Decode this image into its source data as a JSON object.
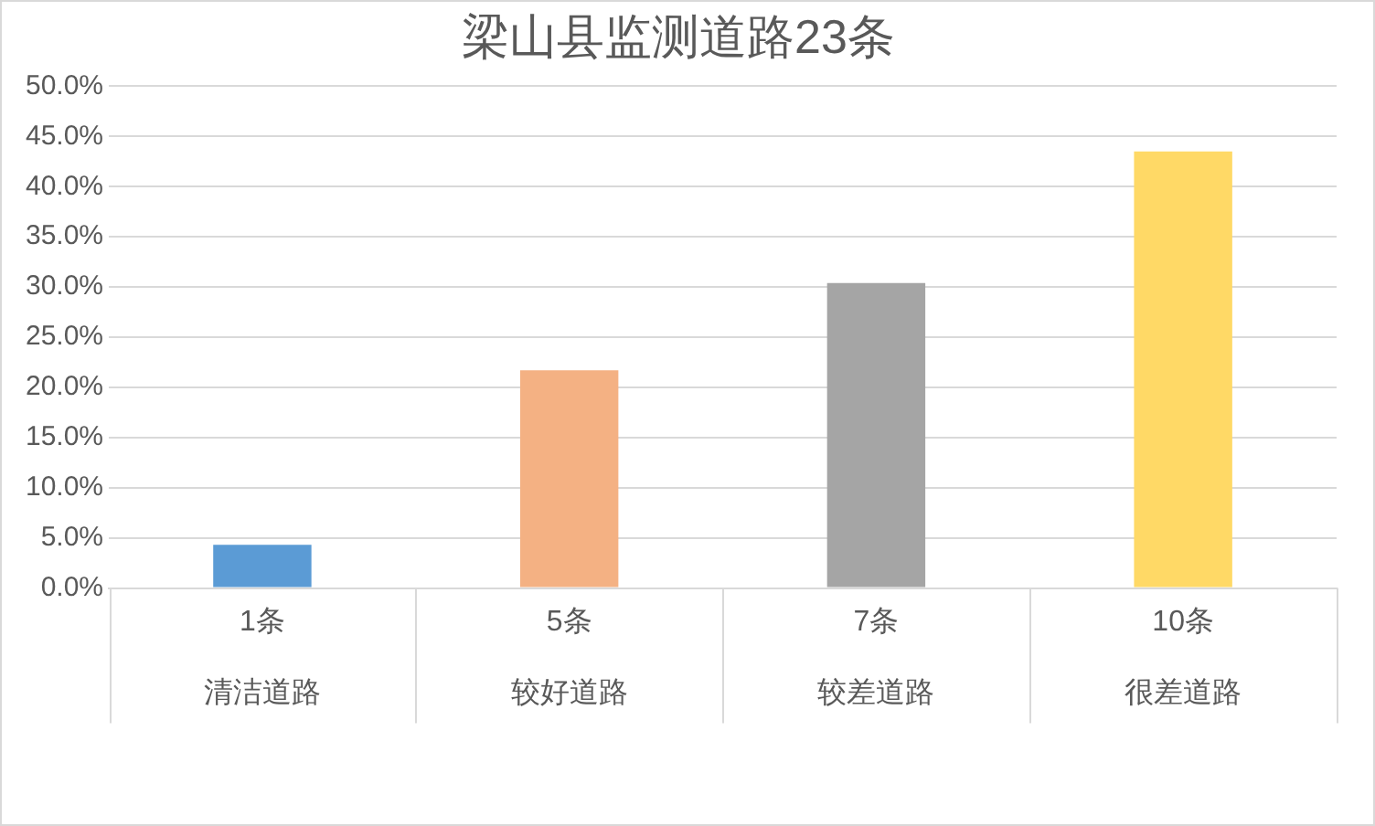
{
  "chart_data": {
    "type": "bar",
    "title": "梁山县监测道路23条",
    "categories": [
      "清洁道路",
      "较好道路",
      "较差道路",
      "很差道路"
    ],
    "annotations": [
      "1条",
      "5条",
      "7条",
      "10条"
    ],
    "values": [
      4.3,
      21.7,
      30.4,
      43.5
    ],
    "colors": [
      "#5b9bd5",
      "#f4b183",
      "#a5a5a5",
      "#ffd966"
    ],
    "ylim": [
      0,
      50
    ],
    "yticks": [
      {
        "value": 0,
        "label": "0.0%"
      },
      {
        "value": 5,
        "label": "5.0%"
      },
      {
        "value": 10,
        "label": "10.0%"
      },
      {
        "value": 15,
        "label": "15.0%"
      },
      {
        "value": 20,
        "label": "20.0%"
      },
      {
        "value": 25,
        "label": "25.0%"
      },
      {
        "value": 30,
        "label": "30.0%"
      },
      {
        "value": 35,
        "label": "35.0%"
      },
      {
        "value": 40,
        "label": "40.0%"
      },
      {
        "value": 45,
        "label": "45.0%"
      },
      {
        "value": 50,
        "label": "50.0%"
      }
    ],
    "grid": "y",
    "legend": false
  }
}
